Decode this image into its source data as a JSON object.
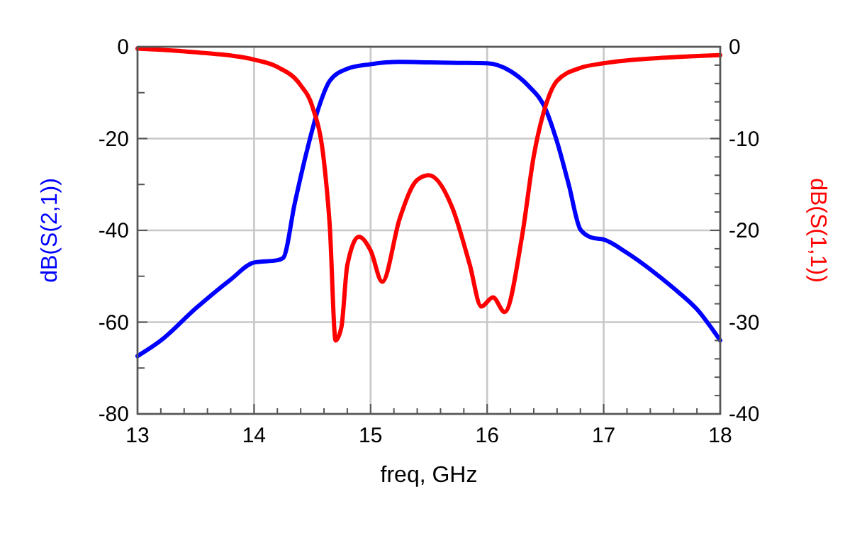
{
  "chart_data": {
    "type": "line",
    "xlabel": "freq, GHz",
    "ylabel": "dB(S(2,1))",
    "y2label": "dB(S(1,1))",
    "xlim": [
      13,
      18
    ],
    "xticks": [
      13,
      {
        "value": 13.2,
        "label": null
      },
      {
        "value": 13.4,
        "label": null
      },
      {
        "value": 13.6,
        "label": null
      },
      {
        "value": 13.8,
        "label": null
      },
      14,
      {
        "value": 14.2,
        "label": null
      },
      {
        "value": 14.4,
        "label": null
      },
      {
        "value": 14.6,
        "label": null
      },
      {
        "value": 14.8,
        "label": null
      },
      15,
      {
        "value": 15.2,
        "label": null
      },
      {
        "value": 15.4,
        "label": null
      },
      {
        "value": 15.6,
        "label": null
      },
      {
        "value": 15.8,
        "label": null
      },
      16,
      {
        "value": 16.2,
        "label": null
      },
      {
        "value": 16.4,
        "label": null
      },
      {
        "value": 16.6,
        "label": null
      },
      {
        "value": 16.8,
        "label": null
      },
      17,
      {
        "value": 17.2,
        "label": null
      },
      {
        "value": 17.4,
        "label": null
      },
      {
        "value": 17.6,
        "label": null
      },
      {
        "value": 17.8,
        "label": null
      },
      18
    ],
    "ylim": [
      -80,
      0
    ],
    "yticks": [
      -80,
      {
        "value": -70,
        "label": null
      },
      -60,
      {
        "value": -50,
        "label": null
      },
      -40,
      {
        "value": -30,
        "label": null
      },
      -20,
      {
        "value": -10,
        "label": null
      },
      0
    ],
    "y2lim": [
      -40,
      0
    ],
    "y2ticks": [
      -40,
      {
        "value": -38,
        "label": null
      },
      {
        "value": -36,
        "label": null
      },
      {
        "value": -34,
        "label": null
      },
      {
        "value": -32,
        "label": null
      },
      -30,
      {
        "value": -28,
        "label": null
      },
      {
        "value": -26,
        "label": null
      },
      {
        "value": -24,
        "label": null
      },
      {
        "value": -22,
        "label": null
      },
      -20,
      {
        "value": -18,
        "label": null
      },
      {
        "value": -16,
        "label": null
      },
      {
        "value": -14,
        "label": null
      },
      {
        "value": -12,
        "label": null
      },
      -10,
      {
        "value": -8,
        "label": null
      },
      {
        "value": -6,
        "label": null
      },
      {
        "value": -4,
        "label": null
      },
      {
        "value": -2,
        "label": null
      },
      0
    ],
    "grid": true,
    "marker": "none",
    "line_style": "solid",
    "series": [
      {
        "color": "#0000ff",
        "x": [
          13,
          13.2,
          13.5,
          13.8,
          14,
          14.2,
          14.25,
          14.35,
          14.45,
          14.55,
          14.65,
          14.8,
          15,
          15.25,
          15.5,
          15.75,
          16,
          16.2,
          16.35,
          16.5,
          16.6,
          16.7,
          16.8,
          16.9,
          17,
          17.2,
          17.4,
          17.6,
          17.8,
          18
        ],
        "values": [
          -67.4,
          -64,
          -57,
          -50.7,
          -47,
          -46.5,
          -46,
          -34,
          -23,
          -13.6,
          -7.4,
          -4.8,
          -3.8,
          -3.3,
          -3.4,
          -3.5,
          -3.6,
          -5.3,
          -8.4,
          -13.5,
          -20.7,
          -30,
          -39.8,
          -41.6,
          -42,
          -44.9,
          -48.5,
          -52.6,
          -57.2,
          -64
        ]
      },
      {
        "color": "#ff0000",
        "axis": "y2",
        "x": [
          13,
          13.5,
          14,
          14.2,
          14.4,
          14.5,
          14.6,
          14.65,
          14.7,
          14.75,
          14.8,
          14.9,
          15,
          15.1,
          15.25,
          15.4,
          15.5,
          15.7,
          15.85,
          15.95,
          16.05,
          16.15,
          16.3,
          16.4,
          16.5,
          16.6,
          16.8,
          17,
          17.5,
          18
        ],
        "values": [
          -0.2,
          -0.6,
          -1.4,
          -2.2,
          -4.2,
          -6.5,
          -12.5,
          -19.6,
          -32,
          -30.5,
          -23.8,
          -20.7,
          -22.2,
          -25.6,
          -18.7,
          -14.5,
          -14,
          -17.5,
          -23.7,
          -28.3,
          -27.3,
          -28.9,
          -20.6,
          -11.9,
          -6.5,
          -3.7,
          -2.3,
          -1.8,
          -1.2,
          -0.9
        ]
      }
    ]
  }
}
